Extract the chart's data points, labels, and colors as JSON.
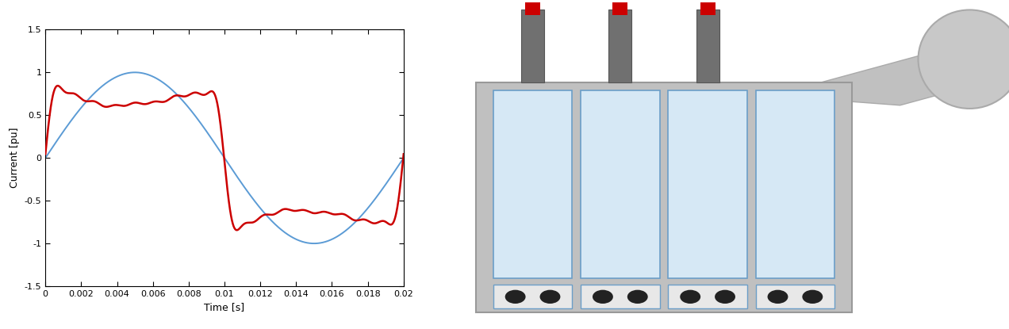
{
  "plot_bg": "#ffffff",
  "fig_bg": "#ffffff",
  "xlim": [
    0,
    0.02
  ],
  "ylim": [
    -1.5,
    1.5
  ],
  "xlabel": "Time [s]",
  "ylabel": "Current [pu]",
  "sine_color": "#5b9bd5",
  "distorted_color": "#cc0000",
  "xticks": [
    0,
    0.002,
    0.004,
    0.006,
    0.008,
    0.01,
    0.012,
    0.014,
    0.016,
    0.018,
    0.02
  ],
  "yticks": [
    -1.5,
    -1.0,
    -0.5,
    0,
    0.5,
    1.0,
    1.5
  ],
  "sine_lw": 1.4,
  "distorted_lw": 1.8,
  "transformer_bg": "#c0c0c0",
  "panel_fill": "#d6e8f5",
  "panel_edge": "#6b9ec8",
  "bushing_color": "#707070",
  "bushing_red": "#cc0000",
  "vent_fill": "#e8e8e8",
  "vent_color": "#222222",
  "ellipse_color": "#c8c8c8",
  "arm_color": "#c0c0c0"
}
